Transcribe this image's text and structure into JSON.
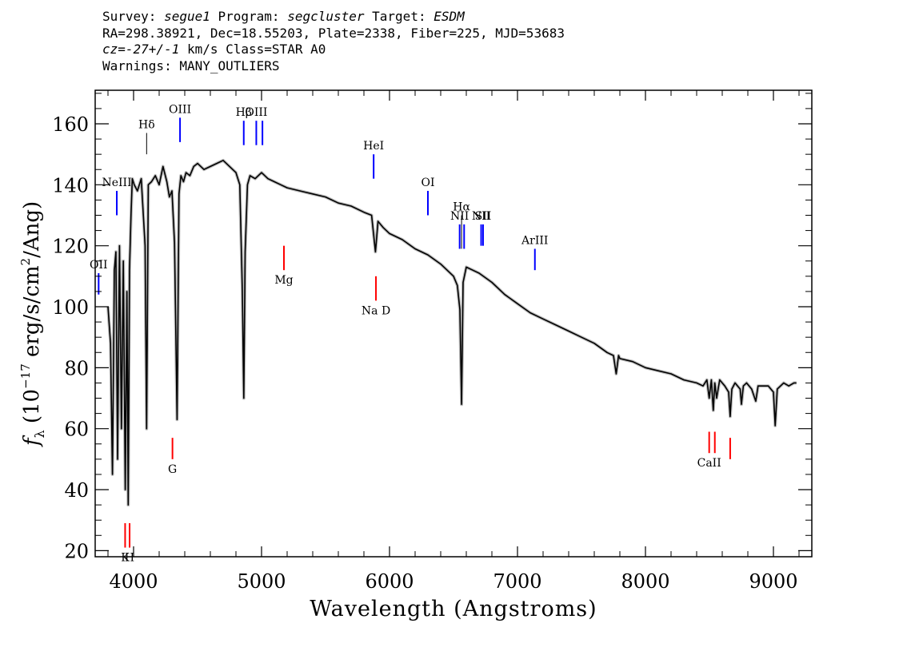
{
  "header": {
    "line1": {
      "survey_label": "Survey: ",
      "survey": "segue1",
      "program_label": " Program: ",
      "program": "segcluster",
      "target_label": " Target: ",
      "target": "ESDM"
    },
    "line2": "RA=298.38921, Dec=18.55203, Plate=2338, Fiber=225, MJD=53683",
    "line3": {
      "cz": "cz=-27+/-1",
      "rest": " km/s Class=STAR A0"
    },
    "line4": "Warnings: MANY_OUTLIERS"
  },
  "chart_data": {
    "type": "line",
    "title": "",
    "xlabel": "Wavelength (Angstroms)",
    "ylabel": "f_λ (10^-17 erg/s/cm^2/Ang)",
    "xlim": [
      3700,
      9300
    ],
    "ylim": [
      18,
      171
    ],
    "x_ticks": [
      4000,
      5000,
      6000,
      7000,
      8000,
      9000
    ],
    "y_ticks": [
      20,
      40,
      60,
      80,
      100,
      120,
      140,
      160
    ],
    "grid": false,
    "colors": {
      "spectrum": "#000000",
      "error_band": "#bdbdbd",
      "emission_lines": "#0000ff",
      "absorption_lines": "#ff0000",
      "unlabeled_lines": "#000000"
    },
    "series": [
      {
        "x": [
          3800,
          3820,
          3835,
          3850,
          3862,
          3875,
          3890,
          3905,
          3920,
          3935,
          3948,
          3958,
          3968,
          3980,
          3990,
          4005,
          4030,
          4060,
          4090,
          4102,
          4115,
          4140,
          4170,
          4200,
          4230,
          4260,
          4280,
          4300,
          4320,
          4340,
          4355,
          4370,
          4390,
          4410,
          4440,
          4470,
          4500,
          4550,
          4600,
          4650,
          4700,
          4750,
          4800,
          4830,
          4850,
          4861,
          4872,
          4890,
          4910,
          4950,
          5000,
          5050,
          5100,
          5150,
          5200,
          5300,
          5400,
          5500,
          5600,
          5700,
          5800,
          5860,
          5885,
          5890,
          5896,
          5910,
          5950,
          6000,
          6100,
          6200,
          6300,
          6400,
          6450,
          6500,
          6530,
          6550,
          6563,
          6575,
          6600,
          6650,
          6700,
          6800,
          6900,
          7000,
          7100,
          7200,
          7300,
          7400,
          7500,
          7600,
          7700,
          7750,
          7771,
          7790,
          7800,
          7900,
          8000,
          8100,
          8200,
          8300,
          8400,
          8450,
          8480,
          8498,
          8515,
          8530,
          8542,
          8556,
          8580,
          8620,
          8650,
          8662,
          8675,
          8700,
          8740,
          8750,
          8765,
          8790,
          8830,
          8862,
          8880,
          8910,
          8960,
          9000,
          9014,
          9030,
          9080,
          9120,
          9160,
          9180
        ],
        "values": [
          100,
          88,
          45,
          112,
          118,
          50,
          120,
          60,
          115,
          40,
          105,
          35,
          112,
          130,
          142,
          140,
          138,
          142,
          120,
          60,
          140,
          141,
          143,
          140,
          146,
          141,
          136,
          138,
          121,
          63,
          137,
          143,
          141,
          144,
          143,
          146,
          147,
          145,
          146,
          147,
          148,
          146,
          144,
          140,
          105,
          70,
          118,
          140,
          143,
          142,
          144,
          142,
          141,
          140,
          139,
          138,
          137,
          136,
          134,
          133,
          131,
          130,
          120,
          118,
          121,
          128,
          126,
          124,
          122,
          119,
          117,
          114,
          112,
          110,
          107,
          99,
          68,
          108,
          113,
          112,
          111,
          108,
          104,
          101,
          98,
          96,
          94,
          92,
          90,
          88,
          85,
          84,
          78,
          84,
          83,
          82,
          80,
          79,
          78,
          76,
          75,
          74,
          76,
          70,
          76,
          66,
          75,
          70,
          76,
          74,
          72,
          64,
          73,
          75,
          73,
          68,
          74,
          75,
          73,
          69,
          74,
          74,
          74,
          72,
          61,
          73,
          75,
          74,
          75,
          75
        ]
      }
    ],
    "line_markers": [
      {
        "label": "OII",
        "wavelength": 3727,
        "kind": "emission",
        "y_top": 111,
        "y_bottom": 104
      },
      {
        "label": "NeIII",
        "wavelength": 3869,
        "kind": "emission",
        "y_top": 138,
        "y_bottom": 130
      },
      {
        "label": "Hδ",
        "wavelength": 4102,
        "kind": "plain",
        "y_top": 157,
        "y_bottom": 150
      },
      {
        "label": "OIII",
        "wavelength": 4363,
        "kind": "emission",
        "y_top": 162,
        "y_bottom": 154
      },
      {
        "label": "Hβ",
        "wavelength": 4861,
        "kind": "emission",
        "y_top": 161,
        "y_bottom": 153
      },
      {
        "label": "OIII",
        "wavelength": 4959,
        "kind": "emission",
        "y_top": 161,
        "y_bottom": 153
      },
      {
        "label": "",
        "wavelength": 5007,
        "kind": "emission",
        "y_top": 161,
        "y_bottom": 153
      },
      {
        "label": "HeI",
        "wavelength": 5876,
        "kind": "emission",
        "y_top": 150,
        "y_bottom": 142
      },
      {
        "label": "OI",
        "wavelength": 6300,
        "kind": "emission",
        "y_top": 138,
        "y_bottom": 130
      },
      {
        "label": "NII",
        "wavelength": 6548,
        "kind": "emission",
        "y_top": 127,
        "y_bottom": 119
      },
      {
        "label": "Hα",
        "wavelength": 6563,
        "kind": "plain",
        "y_top": 130,
        "y_bottom": 119
      },
      {
        "label": "",
        "wavelength": 6583,
        "kind": "emission",
        "y_top": 127,
        "y_bottom": 119
      },
      {
        "label": "NII",
        "wavelength": 6716,
        "kind": "emission",
        "y_top": 127,
        "y_bottom": 120
      },
      {
        "label": "SII",
        "wavelength": 6731,
        "kind": "emission",
        "y_top": 127,
        "y_bottom": 120
      },
      {
        "label": "ArIII",
        "wavelength": 7136,
        "kind": "emission",
        "y_top": 119,
        "y_bottom": 112
      },
      {
        "label": "K",
        "wavelength": 3934,
        "kind": "absorption",
        "y_top": 29,
        "y_bottom": 21
      },
      {
        "label": "H",
        "wavelength": 3969,
        "kind": "absorption",
        "y_top": 29,
        "y_bottom": 21
      },
      {
        "label": "G",
        "wavelength": 4304,
        "kind": "absorption",
        "y_top": 57,
        "y_bottom": 50
      },
      {
        "label": "Mg",
        "wavelength": 5175,
        "kind": "absorption",
        "y_top": 120,
        "y_bottom": 112
      },
      {
        "label": "Na D",
        "wavelength": 5894,
        "kind": "absorption",
        "y_top": 110,
        "y_bottom": 102
      },
      {
        "label": "CaII",
        "wavelength": 8498,
        "kind": "absorption",
        "y_top": 59,
        "y_bottom": 52
      },
      {
        "label": "",
        "wavelength": 8542,
        "kind": "absorption",
        "y_top": 59,
        "y_bottom": 52
      },
      {
        "label": "",
        "wavelength": 8662,
        "kind": "absorption",
        "y_top": 57,
        "y_bottom": 50
      }
    ]
  }
}
